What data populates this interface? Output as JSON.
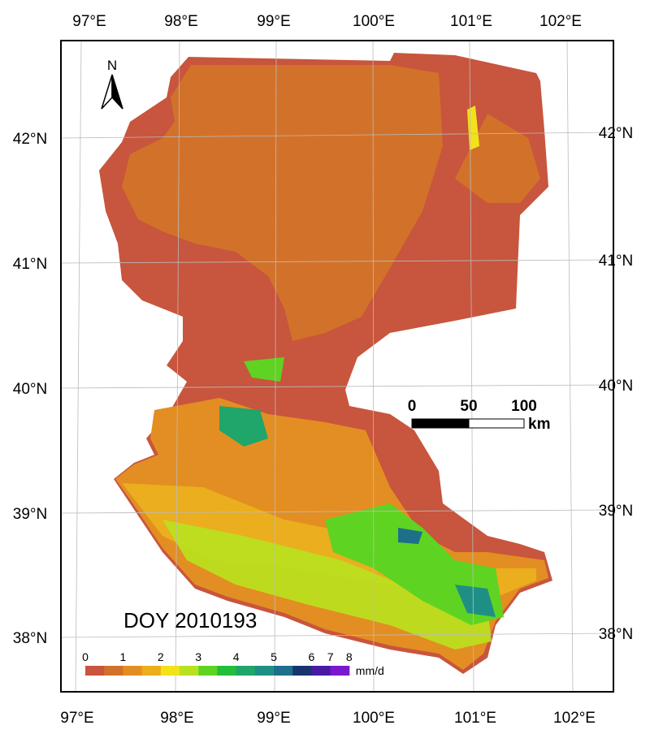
{
  "map": {
    "lon_labels_top": [
      "97°E",
      "98°E",
      "99°E",
      "100°E",
      "101°E",
      "102°E"
    ],
    "lon_labels_bottom": [
      "97°E",
      "98°E",
      "99°E",
      "100°E",
      "101°E",
      "102°E"
    ],
    "lat_labels_left": [
      "42°N",
      "41°N",
      "40°N",
      "39°N",
      "38°N"
    ],
    "lat_labels_right": [
      "42°N",
      "41°N",
      "40°N",
      "39°N",
      "38°N"
    ],
    "north_label": "N",
    "scale_bar": {
      "ticks": [
        "0",
        "50",
        "100"
      ],
      "unit": "km"
    },
    "date_label": "DOY 2010193",
    "legend": {
      "unit": "mm/d",
      "ticks": [
        0,
        1,
        2,
        3,
        4,
        5,
        6,
        7,
        8
      ],
      "breaks": [
        0,
        0.5,
        1,
        1.5,
        2,
        2.5,
        3,
        3.5,
        4,
        4.5,
        5,
        5.5,
        6,
        7,
        8
      ],
      "colors": [
        "#c8553d",
        "#d2722a",
        "#e38e22",
        "#eaae1e",
        "#f2e21a",
        "#b9e21e",
        "#5fd321",
        "#21bf3a",
        "#20a56a",
        "#1f8f86",
        "#1e6f8a",
        "#17346e",
        "#4a1aa6",
        "#7a18d0"
      ]
    }
  }
}
